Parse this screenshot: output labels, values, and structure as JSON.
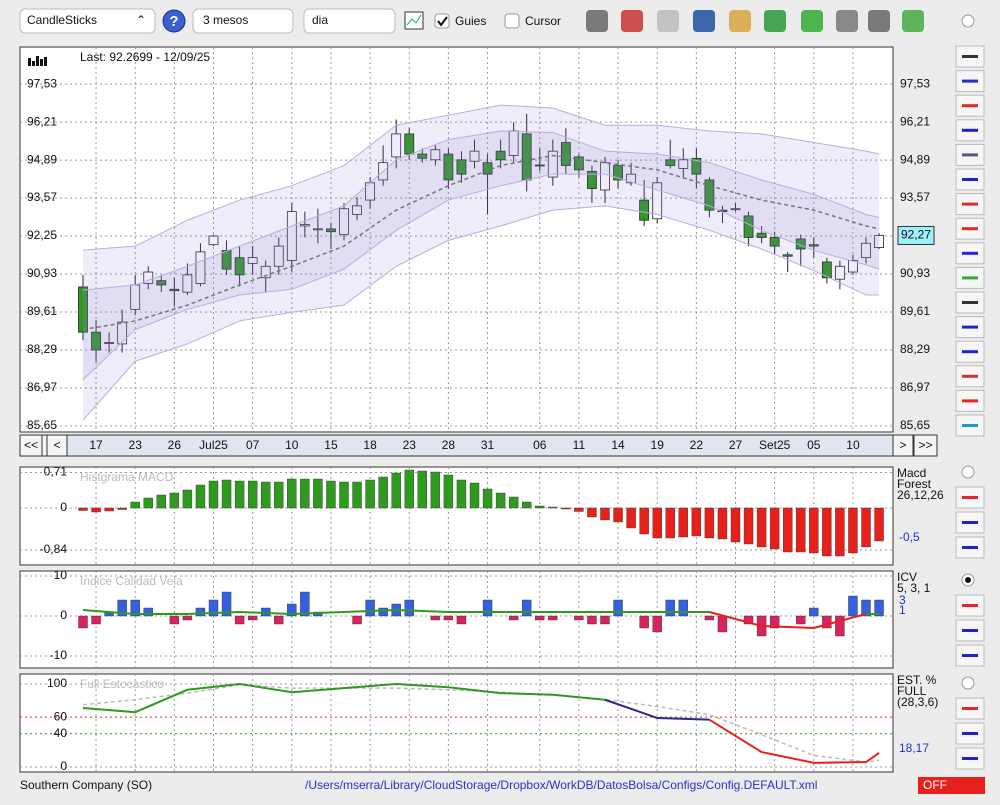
{
  "toolbar": {
    "chart_type": "CandleSticks",
    "help": "?",
    "period": "3 mesos",
    "interval": "dia",
    "guides": "Guies",
    "cursor": "Cursor"
  },
  "chart_data": [
    {
      "type": "candlestick",
      "annotation": "Last: 92.2699 - 12/09/25",
      "categories": [
        null,
        "17",
        null,
        null,
        "23",
        null,
        null,
        "26",
        null,
        null,
        "Jul25",
        null,
        null,
        "07",
        null,
        null,
        "10",
        null,
        null,
        "15",
        null,
        null,
        "18",
        null,
        null,
        "23",
        null,
        null,
        "28",
        null,
        null,
        "31",
        null,
        null,
        null,
        "06",
        null,
        null,
        "11",
        null,
        null,
        "14",
        null,
        null,
        "19",
        null,
        null,
        "22",
        null,
        null,
        "27",
        null,
        null,
        "Set25",
        null,
        null,
        "05",
        null,
        null,
        "10",
        null,
        null
      ],
      "open": [
        90.48,
        88.91,
        88.55,
        88.5,
        89.7,
        90.6,
        90.7,
        90.4,
        90.3,
        90.6,
        91.95,
        91.75,
        91.5,
        91.3,
        90.8,
        91.2,
        91.4,
        92.6,
        92.5,
        92.5,
        92.3,
        93.0,
        93.5,
        94.2,
        95.0,
        95.8,
        95.1,
        94.9,
        95.1,
        94.9,
        94.85,
        94.8,
        95.2,
        95.05,
        95.8,
        94.72,
        94.3,
        95.5,
        95.0,
        94.5,
        93.85,
        94.7,
        94.1,
        93.5,
        92.85,
        94.9,
        94.6,
        94.95,
        94.2,
        93.15,
        93.2,
        92.95,
        92.35,
        92.2,
        91.6,
        92.15,
        91.95,
        91.35,
        90.75,
        91.0,
        91.5,
        91.85
      ],
      "high": [
        90.9,
        89.33,
        88.9,
        89.7,
        90.9,
        91.2,
        90.9,
        90.8,
        91.3,
        92.0,
        92.3,
        92.1,
        91.9,
        91.9,
        91.4,
        92.2,
        93.4,
        93.1,
        93.2,
        92.7,
        93.4,
        93.6,
        94.3,
        95.4,
        96.3,
        96.0,
        95.3,
        95.4,
        95.3,
        95.2,
        95.6,
        95.1,
        95.6,
        96.2,
        96.5,
        95.3,
        95.6,
        96.0,
        95.1,
        94.7,
        95.0,
        94.9,
        94.8,
        94.2,
        94.3,
        95.6,
        95.3,
        95.3,
        94.3,
        93.3,
        93.4,
        93.1,
        92.6,
        92.4,
        91.7,
        92.3,
        92.2,
        91.5,
        91.4,
        91.6,
        92.2,
        92.35
      ],
      "low": [
        88.63,
        87.87,
        88.2,
        88.2,
        89.5,
        90.4,
        90.3,
        89.8,
        90.2,
        90.5,
        91.9,
        90.9,
        90.5,
        90.9,
        90.3,
        90.9,
        91.0,
        92.2,
        92.0,
        91.8,
        92.1,
        92.8,
        93.2,
        94.0,
        94.6,
        94.9,
        94.8,
        94.7,
        93.9,
        94.1,
        94.6,
        93.0,
        94.6,
        94.8,
        93.8,
        94.5,
        94.0,
        94.4,
        94.3,
        93.4,
        93.4,
        93.9,
        94.0,
        92.6,
        92.7,
        94.6,
        94.3,
        93.9,
        92.9,
        92.7,
        93.1,
        91.9,
        92.0,
        91.6,
        91.0,
        91.2,
        91.5,
        90.6,
        90.4,
        90.9,
        91.3,
        91.8
      ],
      "close": [
        88.91,
        88.29,
        88.55,
        89.26,
        90.55,
        91.0,
        90.55,
        90.35,
        90.9,
        91.7,
        92.25,
        91.1,
        90.9,
        91.5,
        91.2,
        91.9,
        93.1,
        92.65,
        92.5,
        92.4,
        93.2,
        93.3,
        94.1,
        94.8,
        95.8,
        95.1,
        94.95,
        95.25,
        94.2,
        94.4,
        95.2,
        94.4,
        94.9,
        95.9,
        94.2,
        94.7,
        95.2,
        94.7,
        94.55,
        93.9,
        94.8,
        94.2,
        94.4,
        92.8,
        94.1,
        94.7,
        94.9,
        94.4,
        93.15,
        93.1,
        93.2,
        92.2,
        92.2,
        91.9,
        91.55,
        91.8,
        91.9,
        90.8,
        91.2,
        91.4,
        92.0,
        92.27
      ],
      "up_color": "#ffffff",
      "down_color": "#2e9a1e",
      "series": [
        {
          "color": "#b9ade0",
          "x": [
            0,
            4,
            8,
            12,
            16,
            20,
            24,
            28,
            32,
            36,
            40,
            44,
            48,
            52,
            56,
            60,
            61
          ],
          "values": [
            91.76,
            91.9,
            92.8,
            93.5,
            94.0,
            94.7,
            96.1,
            96.45,
            96.8,
            96.7,
            96.1,
            96.1,
            95.9,
            95.8,
            95.5,
            95.2,
            95.1
          ]
        },
        {
          "color": "#b9ade0",
          "x": [
            0,
            4,
            8,
            12,
            16,
            20,
            24,
            28,
            32,
            36,
            40,
            44,
            48,
            52,
            56,
            60,
            61
          ],
          "values": [
            85.85,
            87.9,
            88.5,
            89.3,
            89.6,
            89.85,
            91.2,
            92.1,
            92.6,
            93.15,
            93.3,
            93.0,
            92.45,
            91.8,
            91.05,
            90.2,
            90.2
          ]
        },
        {
          "color": "#b9ade0",
          "x": [
            0,
            4,
            8,
            12,
            16,
            20,
            24,
            28,
            32,
            36,
            40,
            44,
            48,
            52,
            56,
            60,
            61
          ],
          "values": [
            90.37,
            90.55,
            91.2,
            91.9,
            92.6,
            93.3,
            94.9,
            95.6,
            95.9,
            95.85,
            95.2,
            95.1,
            94.8,
            94.2,
            93.7,
            93.0,
            92.9
          ]
        },
        {
          "color": "#b9ade0",
          "x": [
            0,
            4,
            8,
            12,
            16,
            20,
            24,
            28,
            32,
            36,
            40,
            44,
            48,
            52,
            56,
            60,
            61
          ],
          "values": [
            87.25,
            89.0,
            89.7,
            90.2,
            90.4,
            91.1,
            92.45,
            93.5,
            94.0,
            94.4,
            94.4,
            93.85,
            93.3,
            92.45,
            91.75,
            91.25,
            91.1
          ]
        },
        {
          "color": "#777777",
          "dashed": true,
          "x": [
            0,
            4,
            8,
            12,
            16,
            20,
            24,
            28,
            32,
            36,
            40,
            44,
            48,
            52,
            56,
            60,
            61
          ],
          "values": [
            89.0,
            89.3,
            89.85,
            90.55,
            91.2,
            91.9,
            93.15,
            94.0,
            94.7,
            95.05,
            94.8,
            94.55,
            94.0,
            93.5,
            93.15,
            92.6,
            92.5
          ]
        }
      ],
      "ylim": [
        85.44,
        98.82
      ],
      "yticks": [
        {
          "value": 97.53,
          "label": "97,53"
        },
        {
          "value": 96.21,
          "label": "96,21"
        },
        {
          "value": 94.89,
          "label": "94,89"
        },
        {
          "value": 93.57,
          "label": "93,57"
        },
        {
          "value": 92.25,
          "label": "92,25"
        },
        {
          "value": 90.93,
          "label": "90,93"
        },
        {
          "value": 89.61,
          "label": "89,61"
        },
        {
          "value": 88.29,
          "label": "88,29"
        },
        {
          "value": 86.97,
          "label": "86,97"
        },
        {
          "value": 85.65,
          "label": "85,65"
        }
      ],
      "last_value": {
        "value": 92.27,
        "label": "92,27"
      },
      "nav_buttons": [
        "<<",
        "<",
        ">",
        ">>"
      ],
      "grid": true
    },
    {
      "type": "bar",
      "title": "Histgrama MACD",
      "side_labels": [
        "Macd",
        "Forest",
        "26,12,26"
      ],
      "current_label": "-0,5",
      "values": [
        -0.05,
        -0.08,
        -0.06,
        -0.03,
        0.12,
        0.2,
        0.26,
        0.3,
        0.36,
        0.46,
        0.54,
        0.56,
        0.54,
        0.54,
        0.52,
        0.52,
        0.58,
        0.58,
        0.58,
        0.54,
        0.52,
        0.52,
        0.56,
        0.62,
        0.7,
        0.76,
        0.74,
        0.72,
        0.66,
        0.56,
        0.5,
        0.38,
        0.3,
        0.22,
        0.12,
        0.04,
        0.02,
        -0.02,
        -0.07,
        -0.18,
        -0.24,
        -0.28,
        -0.4,
        -0.52,
        -0.6,
        -0.6,
        -0.58,
        -0.56,
        -0.6,
        -0.62,
        -0.68,
        -0.72,
        -0.78,
        -0.82,
        -0.88,
        -0.88,
        -0.9,
        -0.96,
        -0.96,
        -0.9,
        -0.78,
        -0.66
      ],
      "color": "#2e9a1e",
      "negative_color": "#e8201c",
      "ylim": [
        -1.14,
        0.82
      ],
      "yticks": [
        {
          "value": 0.71,
          "label": "0,71"
        },
        0,
        {
          "value": -0.84,
          "label": "-0,84"
        }
      ]
    },
    {
      "type": "bar",
      "title": "Indice Calidad Vela",
      "side_labels": [
        "ICV",
        "5, 3, 1"
      ],
      "current_labels": [
        "3",
        "1"
      ],
      "values": [
        -3,
        -2,
        1,
        4,
        4,
        2,
        0,
        -2,
        -1,
        2,
        4,
        6,
        -2,
        -1,
        2,
        -2,
        3,
        6,
        1,
        0,
        0,
        -2,
        4,
        2,
        3,
        4,
        0,
        -1,
        -1,
        -2,
        0,
        4,
        0,
        -1,
        4,
        -1,
        -1,
        0,
        -1,
        -2,
        -2,
        4,
        0,
        -3,
        -4,
        4,
        4,
        0,
        -1,
        -4,
        0,
        -2,
        -5,
        -3,
        0,
        -2,
        2,
        -3,
        -5,
        5,
        4,
        4
      ],
      "color": "#3560e0",
      "negative_color": "#d8245e",
      "series": [
        {
          "color": "#2e9a1e",
          "x": [
            0,
            4,
            8,
            12,
            16,
            20,
            24,
            28,
            32,
            36,
            40,
            44,
            48,
            52,
            56,
            60,
            61
          ],
          "values": [
            1.5,
            0.5,
            0.5,
            1,
            0.5,
            1,
            1.5,
            1,
            1,
            1,
            1,
            1,
            1,
            null,
            null,
            0.5,
            0.5
          ]
        },
        {
          "color": "#e8201c",
          "x": [
            0,
            4,
            8,
            12,
            16,
            20,
            24,
            28,
            32,
            36,
            40,
            44,
            48,
            52,
            56,
            60,
            61
          ],
          "values": [
            null,
            null,
            null,
            null,
            null,
            null,
            null,
            null,
            null,
            null,
            null,
            null,
            1,
            -2.5,
            -3,
            0.5,
            null
          ]
        }
      ],
      "ylim": [
        -13,
        11.25
      ],
      "yticks": [
        10,
        0,
        -10
      ]
    },
    {
      "type": "line",
      "title": "Full Estocastico",
      "side_labels": [
        "EST. %",
        "FULL",
        "(28,3,6)"
      ],
      "current_label": "18,17",
      "series": [
        {
          "color": "#bbbbbb",
          "dashed": true,
          "x": [
            0,
            4,
            8,
            12,
            16,
            20,
            24,
            28,
            32,
            36,
            40,
            44,
            48,
            52,
            56,
            60,
            61
          ],
          "values": [
            75,
            81,
            89,
            99,
            95,
            95,
            95,
            93,
            90,
            87,
            81,
            73,
            63,
            39,
            14,
            6,
            8
          ]
        },
        {
          "color": "#2e9a1e",
          "x": [
            0,
            4,
            8,
            12,
            16,
            20,
            24,
            28,
            32,
            36,
            40,
            44,
            48,
            52,
            56,
            60,
            61
          ],
          "values": [
            71,
            66,
            93,
            100,
            90,
            95,
            100,
            96,
            89,
            87,
            81,
            null,
            null,
            null,
            null,
            null,
            null
          ]
        },
        {
          "color": "#2a2a8a",
          "x": [
            0,
            4,
            8,
            12,
            16,
            20,
            24,
            28,
            32,
            36,
            40,
            44,
            48,
            52,
            56,
            60,
            61
          ],
          "values": [
            null,
            null,
            null,
            null,
            null,
            null,
            null,
            null,
            null,
            null,
            81,
            59,
            57,
            null,
            null,
            null,
            null
          ]
        },
        {
          "color": "#e8201c",
          "x": [
            0,
            4,
            8,
            12,
            16,
            20,
            24,
            28,
            32,
            36,
            40,
            44,
            48,
            52,
            56,
            60,
            61
          ],
          "values": [
            null,
            null,
            null,
            null,
            null,
            null,
            null,
            null,
            null,
            null,
            null,
            null,
            57,
            18,
            5,
            6,
            17
          ]
        }
      ],
      "ylim": [
        -6,
        112
      ],
      "yticks": [
        100,
        60,
        40,
        0
      ],
      "tick_colors": [
        "#999999",
        "#c0392b",
        "#2e9a1e",
        "#999999"
      ]
    }
  ],
  "status_bar": {
    "company": "Southern Company (SO)",
    "config_path": "/Users/mserra/Library/CloudStorage/Dropbox/WorkDB/DatosBolsa/Configs/Config.DEFAULT.xml",
    "mode": "OFF"
  }
}
